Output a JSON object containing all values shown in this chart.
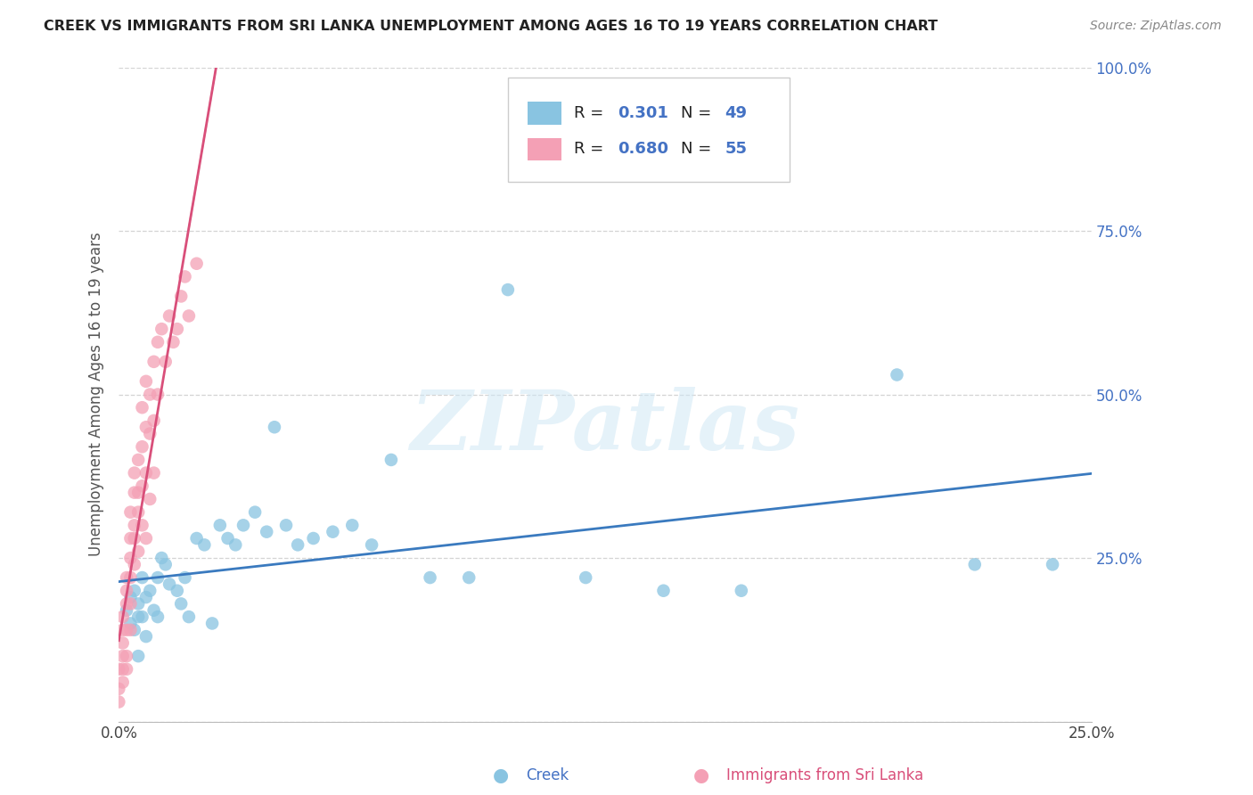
{
  "title": "CREEK VS IMMIGRANTS FROM SRI LANKA UNEMPLOYMENT AMONG AGES 16 TO 19 YEARS CORRELATION CHART",
  "source": "Source: ZipAtlas.com",
  "ylabel": "Unemployment Among Ages 16 to 19 years",
  "xlabel_creek": "Creek",
  "xlabel_srilanka": "Immigrants from Sri Lanka",
  "xmin": 0.0,
  "xmax": 0.25,
  "ymin": 0.0,
  "ymax": 1.0,
  "creek_color": "#89c4e1",
  "srilanka_color": "#f4a0b5",
  "creek_line_color": "#3a7abf",
  "srilanka_line_color": "#d94f7a",
  "creek_R": 0.301,
  "creek_N": 49,
  "srilanka_R": 0.68,
  "srilanka_N": 55,
  "watermark_text": "ZIPatlas",
  "background_color": "#ffffff",
  "grid_color": "#d0d0d0",
  "creek_x": [
    0.002,
    0.003,
    0.003,
    0.004,
    0.004,
    0.005,
    0.005,
    0.005,
    0.006,
    0.006,
    0.007,
    0.007,
    0.008,
    0.009,
    0.01,
    0.01,
    0.011,
    0.012,
    0.013,
    0.015,
    0.016,
    0.017,
    0.018,
    0.02,
    0.022,
    0.024,
    0.026,
    0.028,
    0.03,
    0.032,
    0.035,
    0.038,
    0.04,
    0.043,
    0.046,
    0.05,
    0.055,
    0.06,
    0.065,
    0.07,
    0.08,
    0.09,
    0.1,
    0.12,
    0.14,
    0.16,
    0.2,
    0.22,
    0.24
  ],
  "creek_y": [
    0.17,
    0.19,
    0.15,
    0.14,
    0.2,
    0.1,
    0.16,
    0.18,
    0.16,
    0.22,
    0.19,
    0.13,
    0.2,
    0.17,
    0.22,
    0.16,
    0.25,
    0.24,
    0.21,
    0.2,
    0.18,
    0.22,
    0.16,
    0.28,
    0.27,
    0.15,
    0.3,
    0.28,
    0.27,
    0.3,
    0.32,
    0.29,
    0.45,
    0.3,
    0.27,
    0.28,
    0.29,
    0.3,
    0.27,
    0.4,
    0.22,
    0.22,
    0.66,
    0.22,
    0.2,
    0.2,
    0.53,
    0.24,
    0.24
  ],
  "srilanka_x": [
    0.0,
    0.0,
    0.0,
    0.001,
    0.001,
    0.001,
    0.001,
    0.001,
    0.001,
    0.002,
    0.002,
    0.002,
    0.002,
    0.002,
    0.002,
    0.003,
    0.003,
    0.003,
    0.003,
    0.003,
    0.003,
    0.004,
    0.004,
    0.004,
    0.004,
    0.004,
    0.005,
    0.005,
    0.005,
    0.005,
    0.006,
    0.006,
    0.006,
    0.006,
    0.007,
    0.007,
    0.007,
    0.007,
    0.008,
    0.008,
    0.008,
    0.009,
    0.009,
    0.009,
    0.01,
    0.01,
    0.011,
    0.012,
    0.013,
    0.014,
    0.015,
    0.016,
    0.017,
    0.018,
    0.02
  ],
  "srilanka_y": [
    0.05,
    0.08,
    0.03,
    0.1,
    0.14,
    0.08,
    0.06,
    0.12,
    0.16,
    0.08,
    0.18,
    0.22,
    0.14,
    0.1,
    0.2,
    0.22,
    0.28,
    0.18,
    0.32,
    0.25,
    0.14,
    0.3,
    0.35,
    0.28,
    0.24,
    0.38,
    0.35,
    0.4,
    0.32,
    0.26,
    0.42,
    0.48,
    0.36,
    0.3,
    0.45,
    0.52,
    0.38,
    0.28,
    0.5,
    0.44,
    0.34,
    0.55,
    0.46,
    0.38,
    0.58,
    0.5,
    0.6,
    0.55,
    0.62,
    0.58,
    0.6,
    0.65,
    0.68,
    0.62,
    0.7
  ],
  "legend_text_r1": "R = ",
  "legend_val_r1": "0.301",
  "legend_text_n1": "  N = ",
  "legend_val_n1": "49",
  "legend_text_r2": "R = ",
  "legend_val_r2": "0.680",
  "legend_text_n2": "  N = ",
  "legend_val_n2": "55"
}
